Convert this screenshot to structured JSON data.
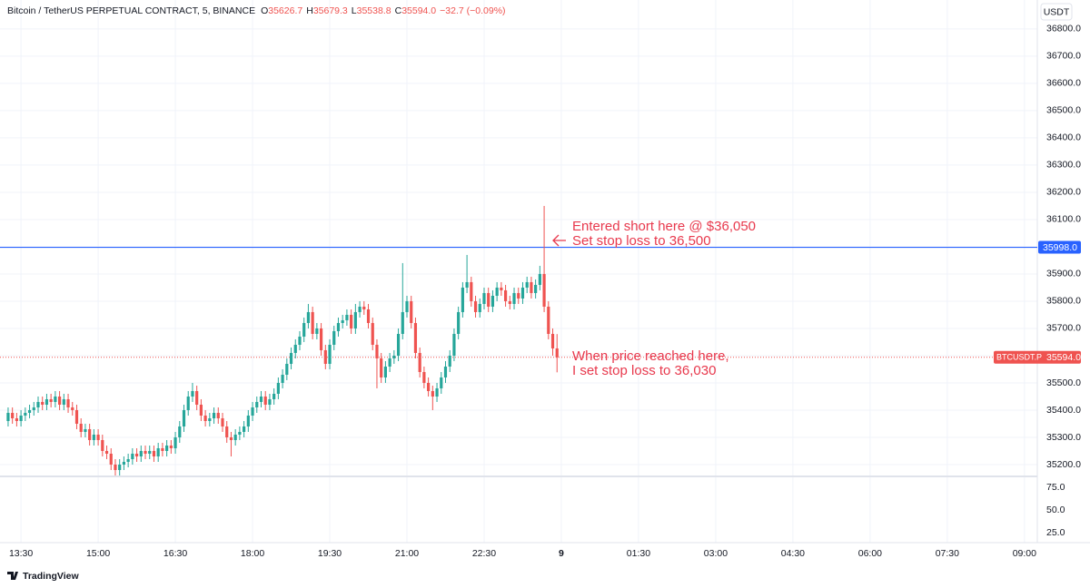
{
  "chart_data": {
    "type": "candlestick",
    "header": {
      "symbol": "Bitcoin / TetherUS PERPETUAL CONTRACT, 5, BINANCE",
      "fields": [
        {
          "key": "O",
          "value": "35626.7"
        },
        {
          "key": "H",
          "value": "35679.3"
        },
        {
          "key": "L",
          "value": "35538.8"
        },
        {
          "key": "C",
          "value": "35594.0"
        }
      ],
      "change": "−32.7 (−0.09%)"
    },
    "currency": "USDT",
    "up_color": "#26a69a",
    "down_color": "#ef5350",
    "x": [
      795,
      800,
      805,
      810,
      815,
      820,
      825,
      830,
      835,
      840,
      845,
      850,
      855,
      860,
      865,
      870,
      875,
      880,
      885,
      890,
      895,
      900,
      905,
      910,
      915,
      920,
      925,
      930,
      935,
      940,
      945,
      950,
      955,
      960,
      965,
      970,
      975,
      980,
      985,
      990,
      995,
      1000,
      1005,
      1010,
      1015,
      1020,
      1025,
      1030,
      1035,
      1040,
      1045,
      1050,
      1055,
      1060,
      1065,
      1070,
      1075,
      1080,
      1085,
      1090,
      1095,
      1100,
      1105,
      1110,
      1115,
      1120,
      1125,
      1130,
      1135,
      1140,
      1145,
      1150,
      1155,
      1160,
      1165,
      1170,
      1175,
      1180,
      1185,
      1190,
      1195,
      1200,
      1205,
      1210,
      1215,
      1220,
      1225,
      1230,
      1235,
      1240,
      1245,
      1250,
      1255,
      1260,
      1265,
      1270,
      1275,
      1280,
      1285,
      1290,
      1295,
      1300,
      1305,
      1310,
      1315,
      1320,
      1325,
      1330,
      1335,
      1340,
      1345,
      1350,
      1355,
      1360,
      1365,
      1370,
      1375,
      1380,
      1385,
      1390,
      1395,
      1400,
      1405,
      1410,
      1415,
      1420,
      1425,
      1430,
      1435
    ],
    "open": [
      35360,
      35390,
      35370,
      35360,
      35380,
      35390,
      35400,
      35410,
      35430,
      35420,
      35440,
      35430,
      35450,
      35420,
      35440,
      35410,
      35400,
      35350,
      35320,
      35330,
      35290,
      35310,
      35290,
      35250,
      35240,
      35200,
      35180,
      35200,
      35210,
      35220,
      35240,
      35230,
      35250,
      35240,
      35250,
      35230,
      35260,
      35250,
      35270,
      35260,
      35300,
      35340,
      35400,
      35450,
      35470,
      35420,
      35380,
      35360,
      35370,
      35390,
      35370,
      35340,
      35300,
      35290,
      35310,
      35320,
      35340,
      35380,
      35410,
      35430,
      35450,
      35420,
      35440,
      35460,
      35500,
      35530,
      35570,
      35610,
      35640,
      35670,
      35720,
      35760,
      35680,
      35700,
      35620,
      35570,
      35640,
      35690,
      35720,
      35730,
      35750,
      35700,
      35760,
      35780,
      35770,
      35720,
      35640,
      35590,
      35520,
      35560,
      35590,
      35600,
      35680,
      35760,
      35800,
      35720,
      35610,
      35540,
      35500,
      35470,
      35450,
      35480,
      35520,
      35560,
      35600,
      35680,
      35760,
      35850,
      35870,
      35800,
      35760,
      35790,
      35830,
      35780,
      35820,
      35850,
      35840,
      35800,
      35790,
      35830,
      35810,
      35850,
      35870,
      35830,
      35860,
      35900,
      35780,
      35680,
      35626.7
    ],
    "high": [
      35410,
      35410,
      35390,
      35400,
      35410,
      35420,
      35430,
      35450,
      35450,
      35460,
      35460,
      35470,
      35470,
      35460,
      35460,
      35430,
      35420,
      35370,
      35350,
      35350,
      35330,
      35330,
      35310,
      35270,
      35260,
      35220,
      35220,
      35230,
      35240,
      35260,
      35260,
      35270,
      35270,
      35270,
      35270,
      35280,
      35280,
      35290,
      35290,
      35320,
      35360,
      35420,
      35470,
      35500,
      35490,
      35440,
      35400,
      35390,
      35410,
      35410,
      35390,
      35360,
      35320,
      35330,
      35340,
      35360,
      35400,
      35430,
      35450,
      35470,
      35470,
      35460,
      35480,
      35520,
      35550,
      35590,
      35630,
      35660,
      35690,
      35740,
      35790,
      35780,
      35720,
      35720,
      35640,
      35660,
      35710,
      35740,
      35750,
      35770,
      35770,
      35790,
      35800,
      35800,
      35790,
      35740,
      35660,
      35610,
      35580,
      35610,
      35620,
      35700,
      35940,
      35820,
      35820,
      35740,
      35630,
      35560,
      35520,
      35490,
      35500,
      35540,
      35580,
      35620,
      35700,
      35780,
      35870,
      35970,
      35890,
      35820,
      35810,
      35850,
      35850,
      35840,
      35870,
      35870,
      35860,
      35820,
      35850,
      35850,
      35870,
      35890,
      35890,
      35880,
      35930,
      36150,
      35800,
      35700,
      35679.3
    ],
    "low": [
      35340,
      35350,
      35340,
      35340,
      35360,
      35370,
      35380,
      35390,
      35400,
      35400,
      35410,
      35410,
      35400,
      35400,
      35390,
      35380,
      35330,
      35300,
      35300,
      35270,
      35270,
      35270,
      35230,
      35220,
      35180,
      35160,
      35160,
      35180,
      35190,
      35200,
      35210,
      35210,
      35220,
      35220,
      35210,
      35210,
      35230,
      35230,
      35240,
      35240,
      35280,
      35320,
      35380,
      35430,
      35400,
      35360,
      35340,
      35340,
      35350,
      35350,
      35320,
      35280,
      35230,
      35270,
      35290,
      35300,
      35320,
      35360,
      35390,
      35410,
      35400,
      35400,
      35420,
      35440,
      35480,
      35510,
      35550,
      35590,
      35620,
      35650,
      35700,
      35660,
      35660,
      35600,
      35550,
      35550,
      35620,
      35670,
      35700,
      35710,
      35680,
      35680,
      35740,
      35750,
      35700,
      35620,
      35480,
      35500,
      35500,
      35540,
      35570,
      35580,
      35660,
      35740,
      35700,
      35590,
      35520,
      35480,
      35450,
      35400,
      35430,
      35460,
      35500,
      35540,
      35580,
      35660,
      35740,
      35830,
      35780,
      35740,
      35740,
      35770,
      35760,
      35760,
      35800,
      35820,
      35780,
      35770,
      35770,
      35790,
      35790,
      35830,
      35810,
      35810,
      35840,
      35760,
      35660,
      35600,
      35538.8
    ],
    "close": [
      35390,
      35370,
      35360,
      35380,
      35390,
      35400,
      35410,
      35430,
      35420,
      35440,
      35430,
      35450,
      35420,
      35440,
      35410,
      35400,
      35350,
      35320,
      35330,
      35290,
      35310,
      35290,
      35250,
      35240,
      35200,
      35180,
      35200,
      35210,
      35220,
      35240,
      35230,
      35250,
      35240,
      35250,
      35230,
      35260,
      35250,
      35270,
      35260,
      35300,
      35340,
      35400,
      35450,
      35470,
      35420,
      35380,
      35360,
      35370,
      35390,
      35370,
      35340,
      35300,
      35290,
      35310,
      35320,
      35340,
      35380,
      35410,
      35430,
      35450,
      35420,
      35440,
      35460,
      35500,
      35530,
      35570,
      35610,
      35640,
      35670,
      35720,
      35760,
      35680,
      35700,
      35620,
      35570,
      35640,
      35690,
      35720,
      35730,
      35750,
      35700,
      35760,
      35780,
      35770,
      35720,
      35640,
      35590,
      35520,
      35560,
      35590,
      35600,
      35680,
      35760,
      35800,
      35720,
      35610,
      35540,
      35500,
      35470,
      35450,
      35480,
      35520,
      35560,
      35600,
      35680,
      35760,
      35850,
      35870,
      35800,
      35760,
      35790,
      35830,
      35780,
      35820,
      35850,
      35840,
      35800,
      35790,
      35830,
      35810,
      35850,
      35870,
      35830,
      35860,
      35900,
      35780,
      35680,
      35626.7,
      35594.0
    ],
    "xlim": [
      794,
      1995
    ],
    "xticks": [
      {
        "value": 810,
        "label": "13:30"
      },
      {
        "value": 900,
        "label": "15:00"
      },
      {
        "value": 990,
        "label": "16:30"
      },
      {
        "value": 1080,
        "label": "18:00"
      },
      {
        "value": 1170,
        "label": "19:30"
      },
      {
        "value": 1260,
        "label": "21:00"
      },
      {
        "value": 1350,
        "label": "22:30"
      },
      {
        "value": 1440,
        "label": "9"
      },
      {
        "value": 1530,
        "label": "01:30"
      },
      {
        "value": 1620,
        "label": "03:00"
      },
      {
        "value": 1710,
        "label": "04:30"
      },
      {
        "value": 1800,
        "label": "06:00"
      },
      {
        "value": 1890,
        "label": "07:30"
      },
      {
        "value": 1980,
        "label": "09:00"
      }
    ],
    "ylim": [
      35160,
      36833
    ],
    "yticks": [
      {
        "value": 35200,
        "label": "35200.0"
      },
      {
        "value": 35300,
        "label": "35300.0"
      },
      {
        "value": 35400,
        "label": "35400.0"
      },
      {
        "value": 35500,
        "label": "35500.0"
      },
      {
        "value": 35600,
        "label": "35600.0"
      },
      {
        "value": 35700,
        "label": "35700.0"
      },
      {
        "value": 35800,
        "label": "35800.0"
      },
      {
        "value": 35900,
        "label": "35900.0"
      },
      {
        "value": 36000,
        "label": "36000.0"
      },
      {
        "value": 36100,
        "label": "36100.0"
      },
      {
        "value": 36200,
        "label": "36200.0"
      },
      {
        "value": 36300,
        "label": "36300.0"
      },
      {
        "value": 36400,
        "label": "36400.0"
      },
      {
        "value": 36500,
        "label": "36500.0"
      },
      {
        "value": 36600,
        "label": "36600.0"
      },
      {
        "value": 36700,
        "label": "36700.0"
      },
      {
        "value": 36800,
        "label": "36800.0"
      }
    ],
    "grid": true,
    "hline": {
      "value": 35998,
      "label": "35998.0",
      "color": "#2962ff"
    },
    "last_price": {
      "value": 35594,
      "label": "35594.0",
      "symbol": "BTCUSDT.P",
      "color": "#ef5350"
    },
    "indicator": {
      "ylim": [
        14,
        87
      ],
      "yticks": [
        {
          "value": 75,
          "label": "75.0"
        },
        {
          "value": 50,
          "label": "50.0"
        },
        {
          "value": 25,
          "label": "25.0"
        }
      ]
    },
    "annotations": [
      {
        "lines": [
          "Entered short here @ $36,050",
          "Set stop loss to 36,500"
        ],
        "color": "#e8394d"
      },
      {
        "lines": [
          "When price reached here,",
          "I set stop loss to 36,030"
        ],
        "color": "#e8394d"
      }
    ],
    "branding": "TradingView"
  }
}
